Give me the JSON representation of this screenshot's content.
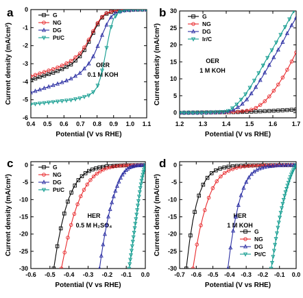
{
  "colors": {
    "G": "#000000",
    "NG": "#e8272a",
    "DG": "#2b2fa3",
    "Pt/C": "#0f9b8e",
    "Ir/C": "#0f9b8e",
    "axis": "#000000"
  },
  "chart_data": [
    {
      "panel_letter": "a",
      "type": "line",
      "xlabel": "Potential (V vs RHE)",
      "ylabel": "Current density (mA/cm²)",
      "xlim": [
        0.4,
        1.1
      ],
      "ylim": [
        -6,
        0
      ],
      "xticks": [
        0.4,
        0.5,
        0.6,
        0.7,
        0.8,
        0.9,
        1.0,
        1.1
      ],
      "xtick_labels": [
        "0.4",
        "0.5",
        "0.6",
        "0.7",
        "0.8",
        "0.9",
        "1.0",
        "1.1"
      ],
      "yticks": [
        -6,
        -5,
        -4,
        -3,
        -2,
        -1,
        0
      ],
      "ytick_labels": [
        "-6",
        "-5",
        "-4",
        "-3",
        "-2",
        "-1",
        "0"
      ],
      "legend": [
        "G",
        "NG",
        "DG",
        "Pt/C"
      ],
      "legend_position": "top-left",
      "annotation": [
        "ORR",
        "0.1 M KOH"
      ],
      "series": [
        {
          "name": "G",
          "x": [
            0.4,
            0.45,
            0.5,
            0.55,
            0.6,
            0.65,
            0.7,
            0.73,
            0.76,
            0.79,
            0.82,
            0.85,
            0.9,
            0.95,
            1.0,
            1.05,
            1.1
          ],
          "y": [
            -3.9,
            -3.75,
            -3.6,
            -3.45,
            -3.25,
            -3.0,
            -2.55,
            -2.15,
            -1.6,
            -1.05,
            -0.55,
            -0.25,
            -0.08,
            -0.03,
            -0.01,
            0,
            0
          ]
        },
        {
          "name": "NG",
          "x": [
            0.4,
            0.45,
            0.5,
            0.55,
            0.6,
            0.65,
            0.7,
            0.73,
            0.76,
            0.79,
            0.82,
            0.85,
            0.9,
            0.95,
            1.0,
            1.05,
            1.1
          ],
          "y": [
            -3.7,
            -3.55,
            -3.4,
            -3.25,
            -3.05,
            -2.8,
            -2.4,
            -2.0,
            -1.5,
            -0.95,
            -0.5,
            -0.22,
            -0.07,
            -0.02,
            -0.01,
            0,
            0
          ]
        },
        {
          "name": "DG",
          "x": [
            0.4,
            0.45,
            0.5,
            0.55,
            0.6,
            0.65,
            0.7,
            0.75,
            0.78,
            0.81,
            0.84,
            0.87,
            0.9,
            0.95,
            1.0,
            1.05,
            1.1
          ],
          "y": [
            -4.6,
            -4.45,
            -4.3,
            -4.15,
            -4.0,
            -3.8,
            -3.5,
            -3.0,
            -2.55,
            -1.9,
            -1.2,
            -0.6,
            -0.25,
            -0.07,
            -0.02,
            0,
            0
          ]
        },
        {
          "name": "Pt/C",
          "x": [
            0.4,
            0.45,
            0.5,
            0.55,
            0.6,
            0.65,
            0.7,
            0.75,
            0.78,
            0.8,
            0.82,
            0.84,
            0.86,
            0.88,
            0.9,
            0.93,
            0.96,
            1.0,
            1.05,
            1.1
          ],
          "y": [
            -5.25,
            -5.2,
            -5.15,
            -5.1,
            -5.05,
            -5.0,
            -4.9,
            -4.75,
            -4.55,
            -4.3,
            -3.8,
            -3.0,
            -2.0,
            -1.1,
            -0.5,
            -0.15,
            -0.05,
            0,
            0,
            0
          ]
        }
      ]
    },
    {
      "panel_letter": "b",
      "type": "line",
      "xlabel": "Potential (V vs RHE)",
      "ylabel": "Current density (mA/cm²)",
      "xlim": [
        1.2,
        1.7
      ],
      "ylim": [
        -1.5,
        30
      ],
      "xticks": [
        1.2,
        1.3,
        1.4,
        1.5,
        1.6,
        1.7
      ],
      "xtick_labels": [
        "1.2",
        "1.3",
        "1.4",
        "1.5",
        "1.6",
        "1.7"
      ],
      "yticks": [
        0,
        5,
        10,
        15,
        20,
        25,
        30
      ],
      "ytick_labels": [
        "0",
        "5",
        "10",
        "15",
        "20",
        "25",
        "30"
      ],
      "legend": [
        "G",
        "NG",
        "DG",
        "Ir/C"
      ],
      "legend_position": "top-left",
      "annotation": [
        "OER",
        "1 M KOH"
      ],
      "series": [
        {
          "name": "G",
          "x": [
            1.2,
            1.25,
            1.3,
            1.35,
            1.4,
            1.45,
            1.5,
            1.55,
            1.6,
            1.65,
            1.7
          ],
          "y": [
            0,
            0.03,
            0.06,
            0.1,
            0.15,
            0.2,
            0.3,
            0.42,
            0.58,
            0.75,
            0.95
          ]
        },
        {
          "name": "NG",
          "x": [
            1.2,
            1.3,
            1.4,
            1.45,
            1.5,
            1.53,
            1.56,
            1.59,
            1.62,
            1.65,
            1.68,
            1.7
          ],
          "y": [
            0,
            0,
            0.1,
            0.3,
            0.7,
            1.5,
            3.0,
            5.2,
            8.0,
            11.2,
            15.0,
            17.8
          ]
        },
        {
          "name": "DG",
          "x": [
            1.2,
            1.3,
            1.4,
            1.43,
            1.46,
            1.49,
            1.52,
            1.55,
            1.58,
            1.61,
            1.64,
            1.67,
            1.7
          ],
          "y": [
            0,
            0,
            0.2,
            0.8,
            2.0,
            4.0,
            6.8,
            10.0,
            13.5,
            17.0,
            20.5,
            24.5,
            28.0
          ]
        },
        {
          "name": "Ir/C",
          "x": [
            1.2,
            1.3,
            1.4,
            1.42,
            1.45,
            1.48,
            1.51,
            1.54,
            1.57,
            1.6,
            1.63,
            1.66,
            1.69
          ],
          "y": [
            0,
            0,
            0.3,
            1.0,
            2.8,
            5.2,
            8.3,
            11.8,
            15.4,
            19.0,
            22.6,
            26.2,
            30.0
          ]
        }
      ]
    },
    {
      "panel_letter": "c",
      "type": "line",
      "xlabel": "Potential (V vs RHE)",
      "ylabel": "Current density (mA/cm²)",
      "xlim": [
        -0.6,
        0.0
      ],
      "ylim": [
        -30,
        1
      ],
      "xticks": [
        -0.6,
        -0.5,
        -0.4,
        -0.3,
        -0.2,
        -0.1,
        0.0
      ],
      "xtick_labels": [
        "-0.6",
        "-0.5",
        "-0.4",
        "-0.3",
        "-0.2",
        "-0.1",
        "0.0"
      ],
      "yticks": [
        -30,
        -25,
        -20,
        -15,
        -10,
        -5,
        0
      ],
      "ytick_labels": [
        "-30",
        "-25",
        "-20",
        "-15",
        "-10",
        "-5",
        "0"
      ],
      "legend": [
        "G",
        "NG",
        "DG",
        "Pt/C"
      ],
      "legend_position": "top-left",
      "annotation": [
        "HER",
        "0.5 M H₂SO₄"
      ],
      "series": [
        {
          "name": "G",
          "x": [
            -0.48,
            -0.46,
            -0.44,
            -0.42,
            -0.4,
            -0.38,
            -0.36,
            -0.34,
            -0.32,
            -0.3,
            -0.27,
            -0.24,
            -0.2,
            -0.15,
            -0.1,
            -0.05,
            0.0
          ],
          "y": [
            -30,
            -23,
            -17.5,
            -13,
            -9.5,
            -7,
            -5,
            -3.6,
            -2.6,
            -1.8,
            -1.1,
            -0.65,
            -0.35,
            -0.15,
            -0.05,
            -0.02,
            0
          ]
        },
        {
          "name": "NG",
          "x": [
            -0.44,
            -0.42,
            -0.4,
            -0.38,
            -0.36,
            -0.34,
            -0.32,
            -0.3,
            -0.28,
            -0.26,
            -0.24,
            -0.22,
            -0.2,
            -0.17,
            -0.14,
            -0.1,
            -0.05,
            0.0
          ],
          "y": [
            -30,
            -24.5,
            -19.5,
            -15.5,
            -12,
            -9.2,
            -7,
            -5.2,
            -3.8,
            -2.7,
            -1.9,
            -1.3,
            -0.85,
            -0.45,
            -0.22,
            -0.08,
            -0.02,
            0
          ]
        },
        {
          "name": "DG",
          "x": [
            -0.24,
            -0.23,
            -0.22,
            -0.21,
            -0.2,
            -0.19,
            -0.18,
            -0.17,
            -0.16,
            -0.15,
            -0.14,
            -0.13,
            -0.12,
            -0.1,
            -0.08,
            -0.05,
            0.0
          ],
          "y": [
            -30,
            -26,
            -22.5,
            -19.3,
            -16.5,
            -14,
            -11.8,
            -9.8,
            -8.0,
            -6.4,
            -5.0,
            -3.8,
            -2.8,
            -1.4,
            -0.6,
            -0.15,
            0
          ]
        },
        {
          "name": "Pt/C",
          "x": [
            -0.085,
            -0.08,
            -0.075,
            -0.07,
            -0.065,
            -0.06,
            -0.055,
            -0.05,
            -0.045,
            -0.04,
            -0.035,
            -0.03,
            -0.025,
            -0.02,
            -0.015,
            -0.01,
            -0.005,
            0.0
          ],
          "y": [
            -30,
            -28,
            -26,
            -24,
            -22,
            -20,
            -18,
            -16,
            -14,
            -12,
            -10,
            -8,
            -6.2,
            -4.6,
            -3.2,
            -2.0,
            -1.0,
            0
          ]
        }
      ]
    },
    {
      "panel_letter": "d",
      "type": "line",
      "xlabel": "Potential (V vs RHE)",
      "ylabel": "Current density (mA/cm²)",
      "xlim": [
        -0.7,
        0.0
      ],
      "ylim": [
        -30,
        1
      ],
      "xticks": [
        -0.7,
        -0.6,
        -0.5,
        -0.4,
        -0.3,
        -0.2,
        -0.1,
        0.0
      ],
      "xtick_labels": [
        "-0.7",
        "-0.6",
        "-0.5",
        "-0.4",
        "-0.3",
        "-0.2",
        "-0.1",
        "0.0"
      ],
      "yticks": [
        -30,
        -25,
        -20,
        -15,
        -10,
        -5,
        0
      ],
      "ytick_labels": [
        "-30",
        "-25",
        "-20",
        "-15",
        "-10",
        "-5",
        "0"
      ],
      "legend": [
        "G",
        "NG",
        "DG",
        "Pt/C"
      ],
      "legend_position": "bottom-center",
      "annotation": [
        "HER",
        "1 M KOH"
      ],
      "series": [
        {
          "name": "G",
          "x": [
            -0.66,
            -0.64,
            -0.62,
            -0.6,
            -0.58,
            -0.56,
            -0.54,
            -0.52,
            -0.5,
            -0.47,
            -0.44,
            -0.4,
            -0.35,
            -0.3,
            -0.2,
            -0.1,
            0.0
          ],
          "y": [
            -30,
            -22,
            -16,
            -11.5,
            -8.2,
            -5.8,
            -4.1,
            -2.9,
            -2.0,
            -1.2,
            -0.75,
            -0.4,
            -0.2,
            -0.1,
            -0.03,
            -0.01,
            0
          ]
        },
        {
          "name": "NG",
          "x": [
            -0.62,
            -0.6,
            -0.58,
            -0.56,
            -0.54,
            -0.52,
            -0.5,
            -0.48,
            -0.46,
            -0.43,
            -0.4,
            -0.36,
            -0.32,
            -0.28,
            -0.2,
            -0.1,
            0.0
          ],
          "y": [
            -30,
            -24,
            -19,
            -15,
            -11.6,
            -8.8,
            -6.6,
            -4.9,
            -3.6,
            -2.3,
            -1.45,
            -0.8,
            -0.42,
            -0.22,
            -0.06,
            -0.01,
            0
          ]
        },
        {
          "name": "DG",
          "x": [
            -0.41,
            -0.4,
            -0.39,
            -0.38,
            -0.37,
            -0.36,
            -0.35,
            -0.34,
            -0.33,
            -0.31,
            -0.29,
            -0.27,
            -0.25,
            -0.22,
            -0.18,
            -0.12,
            -0.05,
            0.0
          ],
          "y": [
            -30,
            -26,
            -22.5,
            -19.5,
            -16.8,
            -14.4,
            -12.2,
            -10.3,
            -8.6,
            -5.9,
            -4.0,
            -2.7,
            -1.8,
            -1.0,
            -0.45,
            -0.15,
            -0.03,
            0
          ]
        },
        {
          "name": "Pt/C",
          "x": [
            -0.15,
            -0.14,
            -0.13,
            -0.12,
            -0.11,
            -0.1,
            -0.09,
            -0.08,
            -0.07,
            -0.06,
            -0.05,
            -0.04,
            -0.03,
            -0.02,
            -0.01,
            0.0
          ],
          "y": [
            -30,
            -27,
            -24,
            -21,
            -18.2,
            -15.6,
            -13.2,
            -11,
            -9,
            -7.2,
            -5.6,
            -4.1,
            -2.8,
            -1.7,
            -0.8,
            0
          ]
        }
      ]
    }
  ]
}
